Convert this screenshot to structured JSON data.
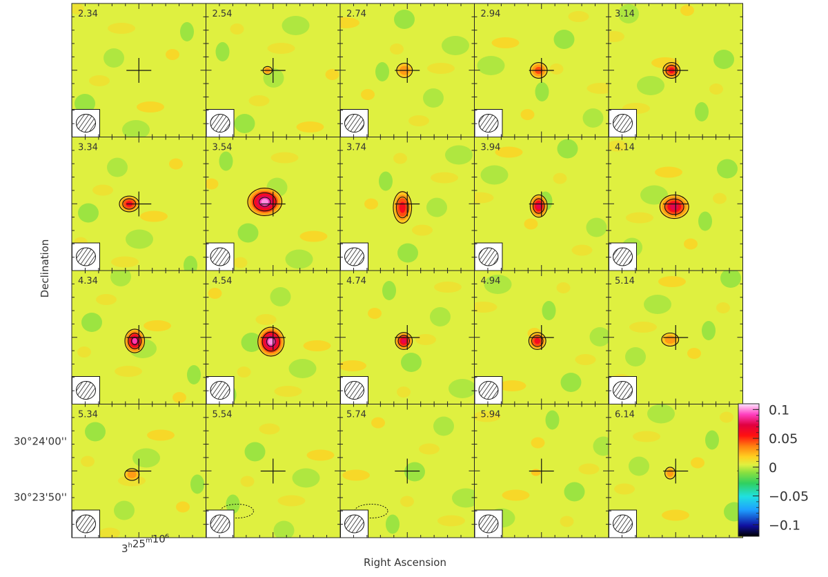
{
  "chart_data": {
    "type": "heatmap",
    "xlabel": "Right Ascension",
    "ylabel": "Declination",
    "panel_labels": [
      "2.34",
      "2.54",
      "2.74",
      "2.94",
      "3.14",
      "3.34",
      "3.54",
      "3.74",
      "3.94",
      "4.14",
      "4.34",
      "4.54",
      "4.74",
      "4.94",
      "5.14",
      "5.34",
      "5.54",
      "5.74",
      "5.94",
      "6.14"
    ],
    "panels": [
      {
        "label": "2.34",
        "peak": 0.006
      },
      {
        "label": "2.54",
        "peak": 0.032
      },
      {
        "label": "2.74",
        "peak": 0.036
      },
      {
        "label": "2.94",
        "peak": 0.058
      },
      {
        "label": "3.14",
        "peak": 0.06
      },
      {
        "label": "3.34",
        "peak": 0.065
      },
      {
        "label": "3.54",
        "peak": 0.1
      },
      {
        "label": "3.74",
        "peak": 0.072
      },
      {
        "label": "3.94",
        "peak": 0.075
      },
      {
        "label": "4.14",
        "peak": 0.085
      },
      {
        "label": "4.34",
        "peak": 0.09
      },
      {
        "label": "4.54",
        "peak": 0.1
      },
      {
        "label": "4.74",
        "peak": 0.075
      },
      {
        "label": "4.94",
        "peak": 0.062
      },
      {
        "label": "5.14",
        "peak": 0.042
      },
      {
        "label": "5.34",
        "peak": 0.038
      },
      {
        "label": "5.54",
        "peak": -0.015
      },
      {
        "label": "5.74",
        "peak": -0.018
      },
      {
        "label": "5.94",
        "peak": 0.022
      },
      {
        "label": "6.14",
        "peak": 0.03
      }
    ],
    "x_tick_labels": [
      {
        "h": "3",
        "m": "25",
        "s": "10"
      }
    ],
    "y_tick_labels": [
      "30°24'00''",
      "30°23'50''"
    ],
    "colorbar": {
      "range": [
        -0.12,
        0.11
      ],
      "tick_labels": [
        "0.1",
        "0.05",
        "0",
        "−0.05",
        "−0.1"
      ],
      "tick_values": [
        0.1,
        0.05,
        0,
        -0.05,
        -0.1
      ]
    },
    "grid": "5x4",
    "grid_lines": false,
    "beam_shown": true,
    "marker": "cross"
  }
}
